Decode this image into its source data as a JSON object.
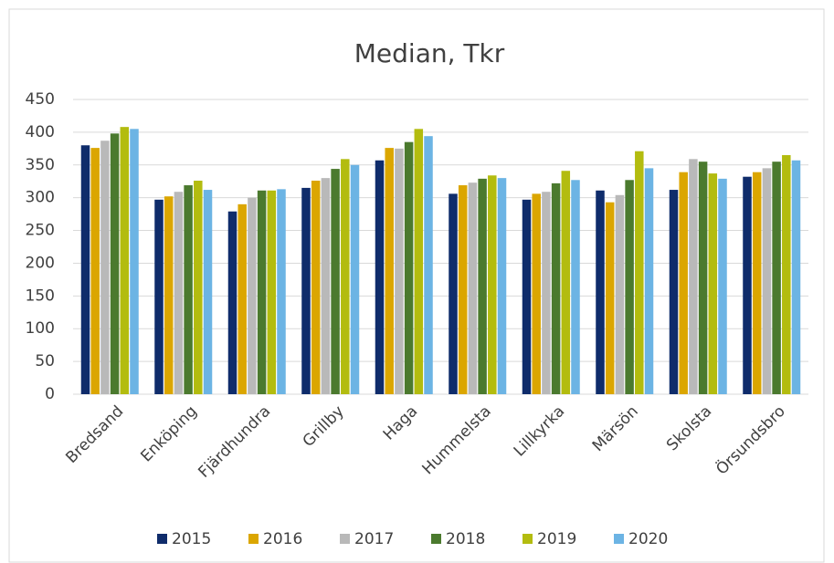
{
  "chart_data": {
    "type": "bar",
    "title": "Median, Tkr",
    "categories": [
      "Bredsand",
      "Enköping",
      "Fjärdhundra",
      "Grillby",
      "Haga",
      "Hummelsta",
      "Lillkyrka",
      "Märsön",
      "Skolsta",
      "Örsundsbro"
    ],
    "series": [
      {
        "name": "2015",
        "color": "#0f2c6b",
        "values": [
          380,
          297,
          279,
          315,
          357,
          306,
          297,
          311,
          312,
          332
        ]
      },
      {
        "name": "2016",
        "color": "#dba600",
        "values": [
          376,
          302,
          290,
          326,
          376,
          319,
          306,
          293,
          339,
          339
        ]
      },
      {
        "name": "2017",
        "color": "#b9b9b9",
        "values": [
          387,
          309,
          300,
          330,
          375,
          323,
          309,
          304,
          359,
          345
        ]
      },
      {
        "name": "2018",
        "color": "#4b7a2e",
        "values": [
          398,
          319,
          311,
          344,
          385,
          329,
          322,
          327,
          355,
          355
        ]
      },
      {
        "name": "2019",
        "color": "#b3bc0f",
        "values": [
          408,
          326,
          311,
          359,
          405,
          334,
          341,
          371,
          337,
          365
        ]
      },
      {
        "name": "2020",
        "color": "#6cb4e4",
        "values": [
          405,
          312,
          313,
          350,
          394,
          330,
          327,
          345,
          329,
          357
        ]
      }
    ],
    "ylim": [
      0,
      450
    ],
    "yticks": [
      0,
      50,
      100,
      150,
      200,
      250,
      300,
      350,
      400,
      450
    ],
    "grid": true,
    "legend": "bottom"
  }
}
